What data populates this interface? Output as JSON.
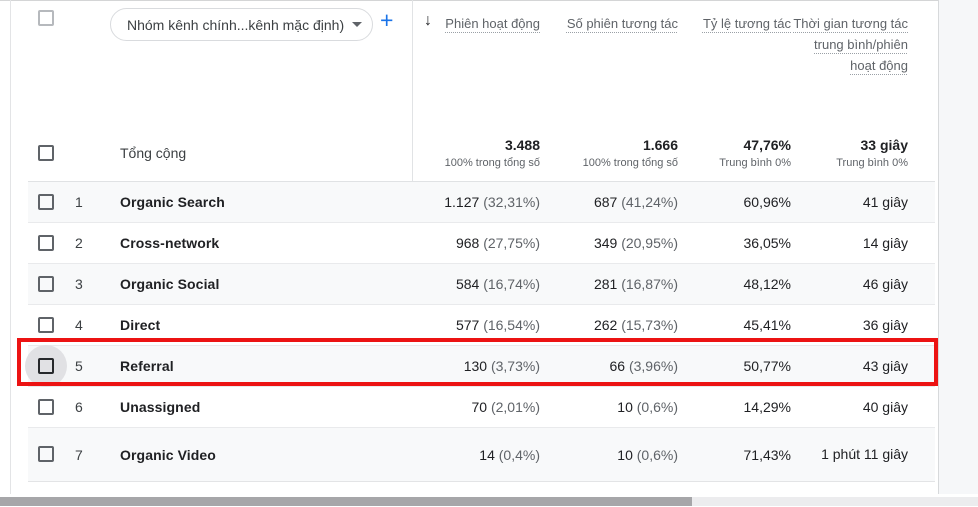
{
  "header": {
    "dimension_dropdown_label": "Nhóm kênh chính...kênh mặc định)",
    "add_button_label": "+",
    "sort_icon": "↓",
    "columns": [
      "Phiên hoạt động",
      "Số phiên tương tác",
      "Tỷ lệ tương tác",
      "Thời gian tương tác trung bình/phiên hoạt động"
    ]
  },
  "totals": {
    "label": "Tổng cộng",
    "metrics": [
      {
        "value": "3.488",
        "sub": "100% trong tổng số"
      },
      {
        "value": "1.666",
        "sub": "100% trong tổng số"
      },
      {
        "value": "47,76%",
        "sub": "Trung bình 0%"
      },
      {
        "value": "33 giây",
        "sub": "Trung bình 0%"
      }
    ]
  },
  "rows": [
    {
      "index": "1",
      "name": "Organic Search",
      "sessions": "1.127",
      "sessions_pct": "(32,31%)",
      "engaged": "687",
      "engaged_pct": "(41,24%)",
      "rate": "60,96%",
      "time": "41 giây"
    },
    {
      "index": "2",
      "name": "Cross-network",
      "sessions": "968",
      "sessions_pct": "(27,75%)",
      "engaged": "349",
      "engaged_pct": "(20,95%)",
      "rate": "36,05%",
      "time": "14 giây"
    },
    {
      "index": "3",
      "name": "Organic Social",
      "sessions": "584",
      "sessions_pct": "(16,74%)",
      "engaged": "281",
      "engaged_pct": "(16,87%)",
      "rate": "48,12%",
      "time": "46 giây"
    },
    {
      "index": "4",
      "name": "Direct",
      "sessions": "577",
      "sessions_pct": "(16,54%)",
      "engaged": "262",
      "engaged_pct": "(15,73%)",
      "rate": "45,41%",
      "time": "36 giây"
    },
    {
      "index": "5",
      "name": "Referral",
      "sessions": "130",
      "sessions_pct": "(3,73%)",
      "engaged": "66",
      "engaged_pct": "(3,96%)",
      "rate": "50,77%",
      "time": "43 giây"
    },
    {
      "index": "6",
      "name": "Unassigned",
      "sessions": "70",
      "sessions_pct": "(2,01%)",
      "engaged": "10",
      "engaged_pct": "(0,6%)",
      "rate": "14,29%",
      "time": "40 giây"
    },
    {
      "index": "7",
      "name": "Organic Video",
      "sessions": "14",
      "sessions_pct": "(0,4%)",
      "engaged": "10",
      "engaged_pct": "(0,6%)",
      "rate": "71,43%",
      "time": "1 phút 11 giây"
    }
  ],
  "annotation": {
    "highlighted_row": "Referral",
    "color": "#ec1313"
  },
  "colors": {
    "accent_blue": "#1a73e8",
    "stripe": "#f8f9fa",
    "text_secondary": "#5f6368"
  }
}
